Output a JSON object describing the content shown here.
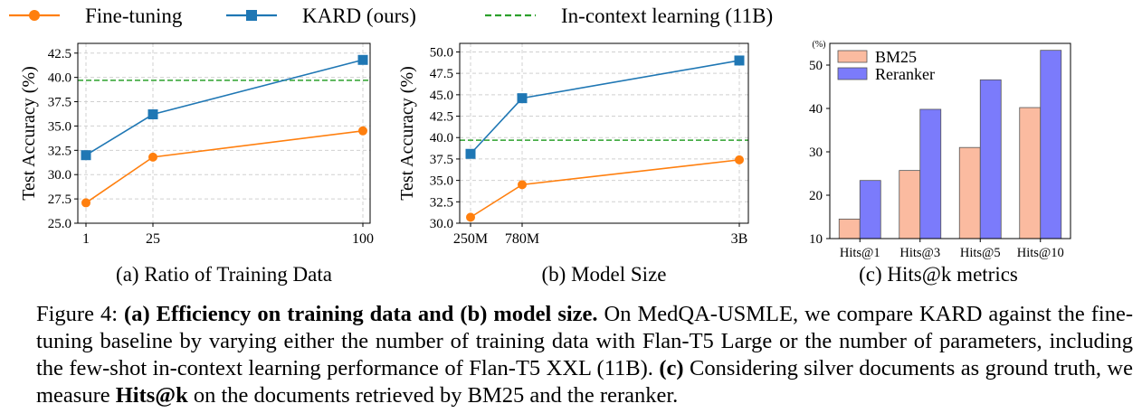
{
  "legend": [
    {
      "label": "Fine-tuning",
      "color": "#ff7f0e",
      "marker": "circle",
      "style": "solid"
    },
    {
      "label": "KARD (ours)",
      "color": "#1f77b4",
      "marker": "square",
      "style": "solid"
    },
    {
      "label": "In-context learning (11B)",
      "color": "#2ca02c",
      "marker": "none",
      "style": "dashed"
    }
  ],
  "chart_data": [
    {
      "type": "line",
      "title": "(a) Ratio of Training Data",
      "ylabel": "Test Accuracy (%)",
      "xlabel": "",
      "x": [
        1,
        25,
        100
      ],
      "x_tick_labels": [
        "1",
        "25",
        "100"
      ],
      "ylim": [
        25.0,
        43.5
      ],
      "y_ticks": [
        "25.0",
        "27.5",
        "30.0",
        "32.5",
        "35.0",
        "37.5",
        "40.0",
        "42.5"
      ],
      "grid": true,
      "series": [
        {
          "name": "Fine-tuning",
          "values": [
            27.1,
            31.8,
            34.5
          ]
        },
        {
          "name": "KARD (ours)",
          "values": [
            32.0,
            36.2,
            41.8
          ]
        }
      ],
      "reference_line": {
        "name": "In-context learning (11B)",
        "value": 39.7
      }
    },
    {
      "type": "line",
      "title": "(b) Model Size",
      "ylabel": "Test Accuracy (%)",
      "xlabel": "",
      "x": [
        250,
        780,
        3000
      ],
      "x_tick_labels": [
        "250M",
        "780M",
        "3B"
      ],
      "ylim": [
        30.0,
        51.0
      ],
      "y_ticks": [
        "30.0",
        "32.5",
        "35.0",
        "37.5",
        "40.0",
        "42.5",
        "45.0",
        "47.5",
        "50.0"
      ],
      "grid": true,
      "series": [
        {
          "name": "Fine-tuning",
          "values": [
            30.7,
            34.5,
            37.4
          ]
        },
        {
          "name": "KARD (ours)",
          "values": [
            38.1,
            44.6,
            49.0
          ]
        }
      ],
      "reference_line": {
        "name": "In-context learning (11B)",
        "value": 39.7
      }
    },
    {
      "type": "bar",
      "title": "(c) Hits@k metrics",
      "unit_label": "(%)",
      "categories": [
        "Hits@1",
        "Hits@3",
        "Hits@5",
        "Hits@10"
      ],
      "ylim": [
        10,
        55
      ],
      "y_ticks": [
        "10",
        "20",
        "30",
        "40",
        "50"
      ],
      "legend_position": "top-left",
      "series": [
        {
          "name": "BM25",
          "color": "#fbbba0",
          "values": [
            14.5,
            25.7,
            31.0,
            40.2
          ]
        },
        {
          "name": "Reranker",
          "color": "#7b7bfb",
          "values": [
            23.4,
            39.8,
            46.6,
            53.4
          ]
        }
      ]
    }
  ],
  "caption": {
    "label": "Figure 4: ",
    "bold1": "(a) Efficiency on training data and (b) model size.",
    "text1": " On MedQA-USMLE, we compare KARD against the fine-tuning baseline by varying either the number of training data with Flan-T5 Large or the number of parameters, including the few-shot in-context learning performance of Flan-T5 XXL (11B). ",
    "bold2": "(c)",
    "text2": " Considering silver documents as ground truth, we measure ",
    "bold3": "Hits@k",
    "text3": " on the documents retrieved by BM25 and the reranker."
  }
}
